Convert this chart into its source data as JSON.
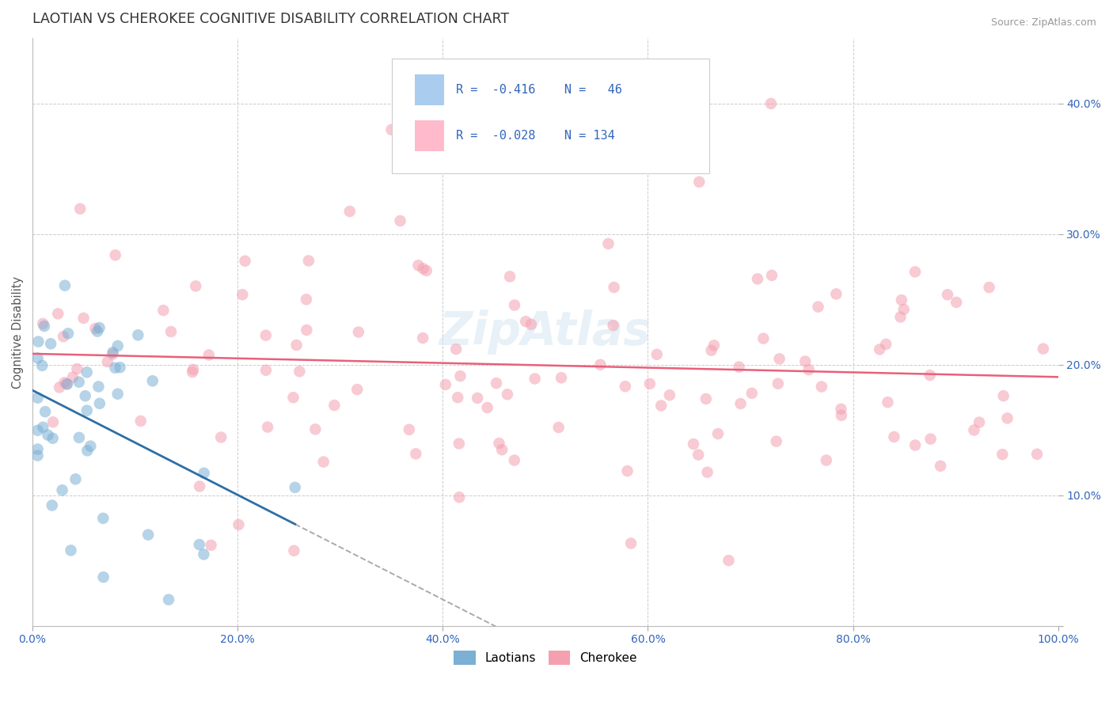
{
  "title": "LAOTIAN VS CHEROKEE COGNITIVE DISABILITY CORRELATION CHART",
  "source": "Source: ZipAtlas.com",
  "ylabel": "Cognitive Disability",
  "xlim": [
    0.0,
    1.0
  ],
  "ylim": [
    0.0,
    0.45
  ],
  "blue_color": "#7BAFD4",
  "pink_color": "#F4A0B0",
  "blue_line_color": "#2E6EA6",
  "pink_line_color": "#E8607A",
  "watermark": "ZipAtlas",
  "legend_blue_label": "R = -0.416   N =  46",
  "legend_pink_label": "R = -0.028   N = 134",
  "bottom_legend_blue": "Laotians",
  "bottom_legend_pink": "Cherokee",
  "seed": 12345
}
